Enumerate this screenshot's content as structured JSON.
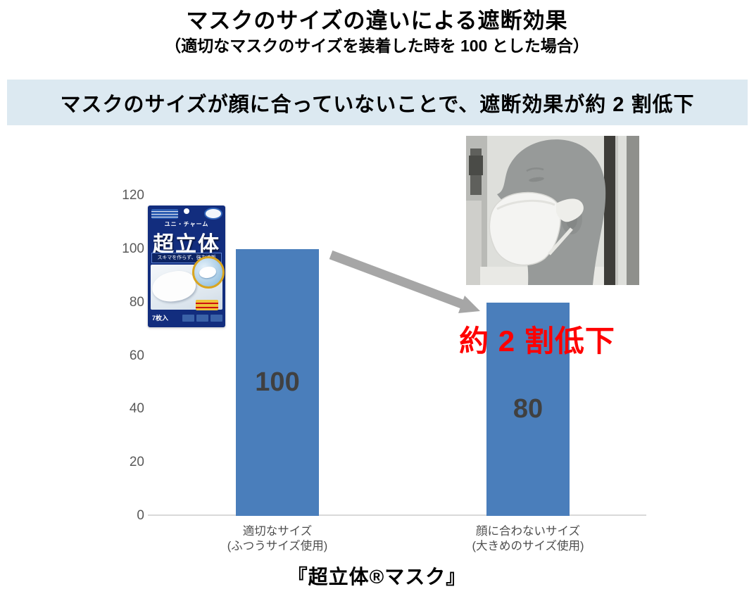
{
  "title": "マスクのサイズの違いによる遮断効果",
  "subtitle": "（適切なマスクのサイズを装着した時を 100 とした場合）",
  "banner": {
    "text": "マスクのサイズが顔に合っていないことで、遮断効果が約 2 割低下",
    "bg_color": "#dce9f1"
  },
  "annotation": {
    "text": "約 2 割低下",
    "color": "#ff0000"
  },
  "arrow_color": "#a6a6a6",
  "footer_caption": "『超立体®マスク』",
  "package": {
    "brand": "ユニ・チャーム",
    "product_name": "超立体",
    "tagline": "スキマを作らず、強力遮断",
    "count_label": "7枚入",
    "bg_color": "#122d7e"
  },
  "chart_data": {
    "type": "bar",
    "categories": [
      "適切なサイズ\n(ふつうサイズ使用)",
      "顔に合わないサイズ\n(大きめのサイズ使用)"
    ],
    "values": [
      100,
      80
    ],
    "bar_labels": [
      "100",
      "80"
    ],
    "title": "",
    "xlabel": "",
    "ylabel": "",
    "ylim": [
      0,
      120
    ],
    "yticks": [
      0,
      20,
      40,
      60,
      80,
      100,
      120
    ],
    "bar_color": "#4a7ebb",
    "value_label_color": "#404040",
    "axis_label_color": "#595959",
    "grid": false,
    "legend": false
  }
}
